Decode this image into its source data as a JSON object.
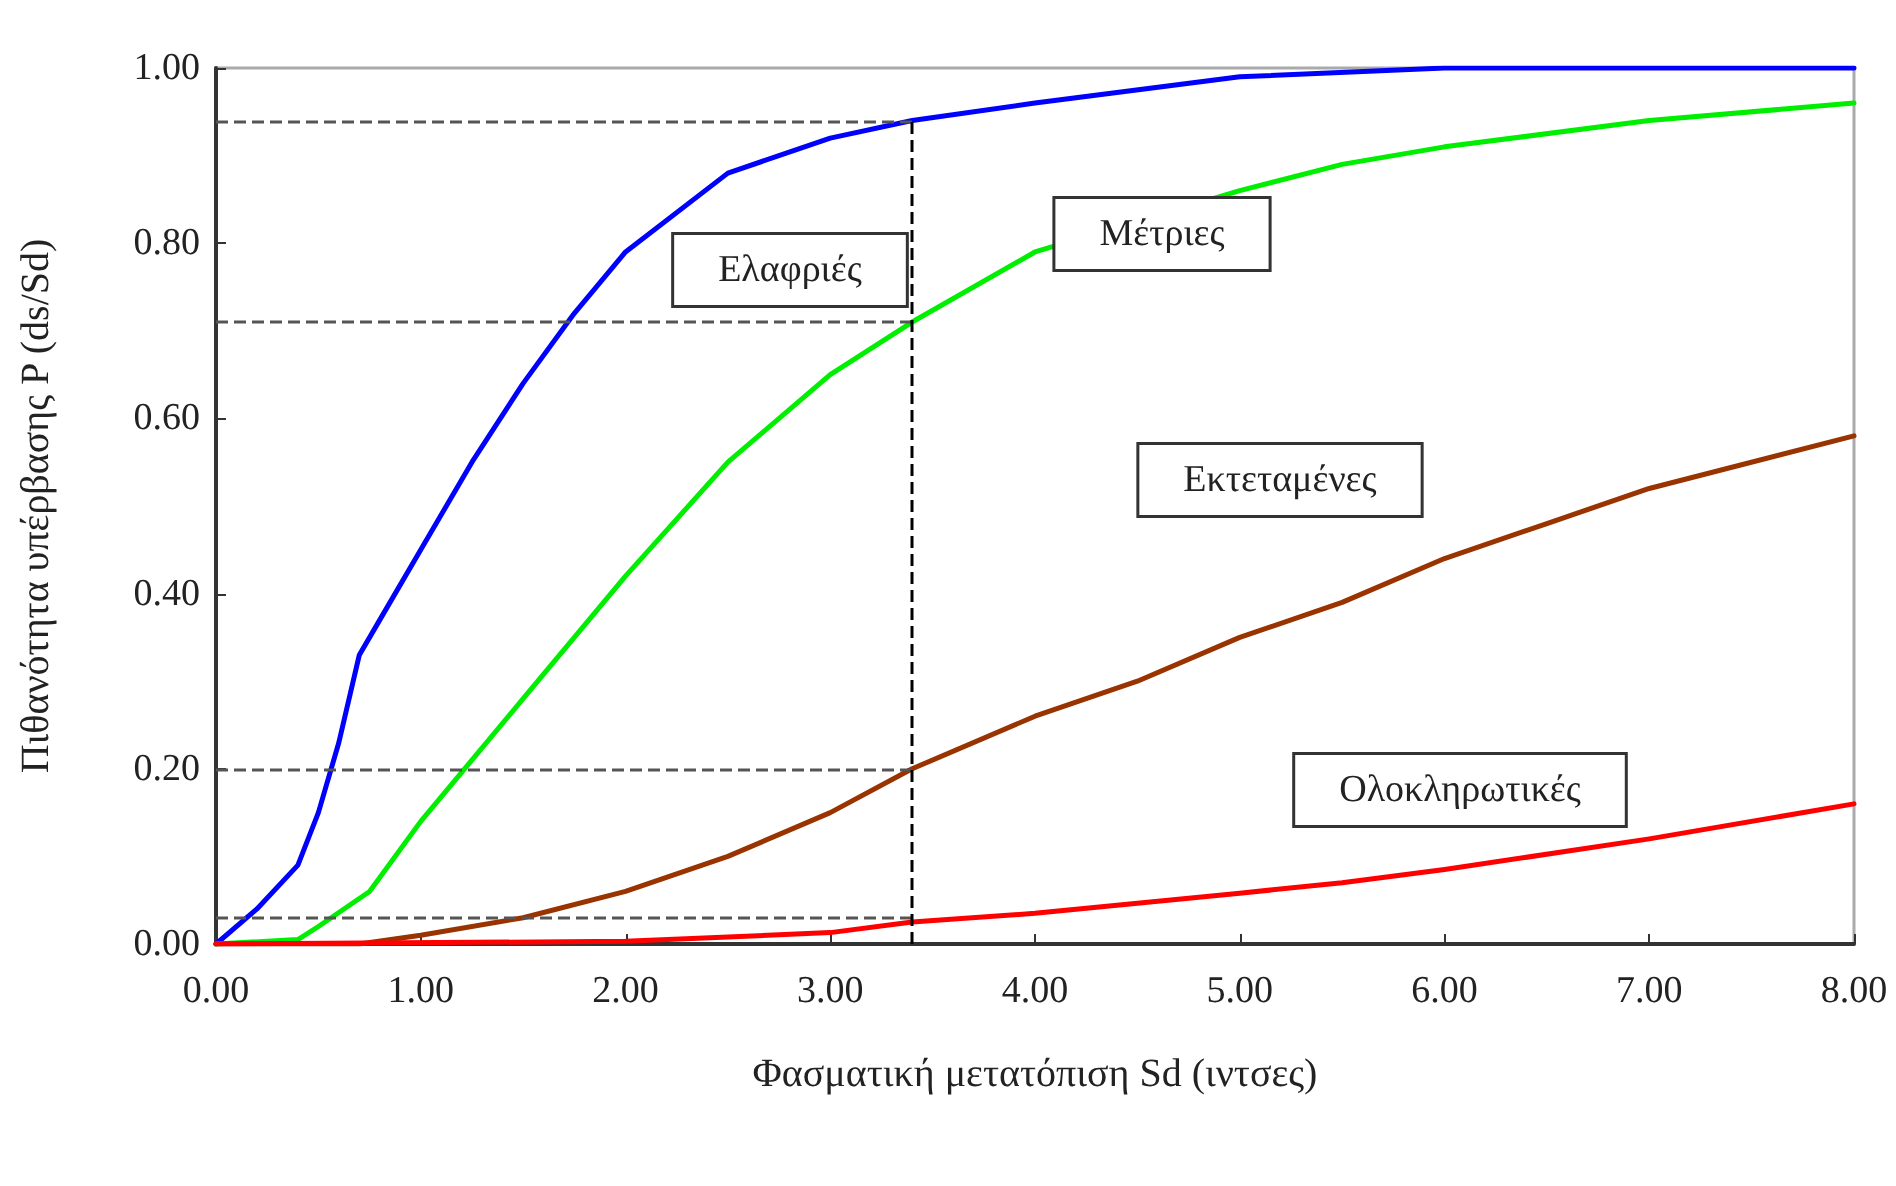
{
  "chart_data": {
    "type": "line",
    "xlabel": "Φασματική μετατόπιση Sd (ιντσες)",
    "ylabel": "Πιθανότητα υπέρβασης P (ds/Sd)",
    "xlim": [
      0,
      8
    ],
    "ylim": [
      0,
      1
    ],
    "xticks": [
      {
        "value": 0,
        "label": "0.00"
      },
      {
        "value": 1,
        "label": "1.00"
      },
      {
        "value": 2,
        "label": "2.00"
      },
      {
        "value": 3,
        "label": "3.00"
      },
      {
        "value": 4,
        "label": "4.00"
      },
      {
        "value": 5,
        "label": "5.00"
      },
      {
        "value": 6,
        "label": "6.00"
      },
      {
        "value": 7,
        "label": "7.00"
      },
      {
        "value": 8,
        "label": "8.00"
      }
    ],
    "yticks": [
      {
        "value": 0,
        "label": "0.00"
      },
      {
        "value": 0.2,
        "label": "0.20"
      },
      {
        "value": 0.4,
        "label": "0.40"
      },
      {
        "value": 0.6,
        "label": "0.60"
      },
      {
        "value": 0.8,
        "label": "0.80"
      },
      {
        "value": 1,
        "label": "1.00"
      }
    ],
    "grid": false,
    "marker": "none",
    "line_style": "solid",
    "series": [
      {
        "name": "Ελαφριές",
        "color": "#0000ff",
        "x": [
          0,
          0.2,
          0.4,
          0.5,
          0.6,
          0.7,
          0.8,
          1.0,
          1.25,
          1.5,
          1.75,
          2.0,
          2.5,
          3.0,
          3.4,
          4.0,
          5.0,
          6.0,
          8.0
        ],
        "values": [
          0,
          0.04,
          0.09,
          0.15,
          0.23,
          0.33,
          0.37,
          0.45,
          0.55,
          0.64,
          0.72,
          0.79,
          0.88,
          0.92,
          0.94,
          0.96,
          0.99,
          1.0,
          1.0
        ]
      },
      {
        "name": "Μέτριες",
        "color": "#00ee00",
        "x": [
          0,
          0.4,
          0.5,
          0.75,
          1.0,
          1.5,
          2.0,
          2.5,
          3.0,
          3.4,
          4.0,
          5.0,
          5.5,
          6.0,
          7.0,
          8.0
        ],
        "values": [
          0,
          0.005,
          0.02,
          0.06,
          0.14,
          0.28,
          0.42,
          0.55,
          0.65,
          0.71,
          0.79,
          0.86,
          0.89,
          0.91,
          0.94,
          0.96
        ]
      },
      {
        "name": "Εκτεταμένες",
        "color": "#993300",
        "x": [
          0,
          0.7,
          1.0,
          1.5,
          2.0,
          2.5,
          3.0,
          3.4,
          4.0,
          4.5,
          5.0,
          5.5,
          6.0,
          6.5,
          7.0,
          8.0
        ],
        "values": [
          0,
          0,
          0.01,
          0.03,
          0.06,
          0.1,
          0.15,
          0.2,
          0.26,
          0.3,
          0.35,
          0.39,
          0.44,
          0.48,
          0.52,
          0.58
        ]
      },
      {
        "name": "Ολοκληρωτικές",
        "color": "#ff0000",
        "x": [
          0,
          2.0,
          3.0,
          3.4,
          4.0,
          5.0,
          5.5,
          6.0,
          7.0,
          8.0
        ],
        "values": [
          0,
          0.003,
          0.013,
          0.025,
          0.035,
          0.058,
          0.07,
          0.085,
          0.12,
          0.16
        ]
      }
    ],
    "ref_lines": [
      {
        "axis": "x",
        "value": 3.4,
        "line_style": "dashed",
        "color": "#000000"
      },
      {
        "axis": "y",
        "value": 0.94,
        "line_style": "dashed",
        "color": "#555555"
      },
      {
        "axis": "y",
        "value": 0.71,
        "line_style": "dashed",
        "color": "#555555"
      },
      {
        "axis": "y",
        "value": 0.2,
        "line_style": "dashed",
        "color": "#555555"
      },
      {
        "axis": "y",
        "value": 0.03,
        "line_style": "dashed",
        "color": "#555555"
      }
    ]
  }
}
